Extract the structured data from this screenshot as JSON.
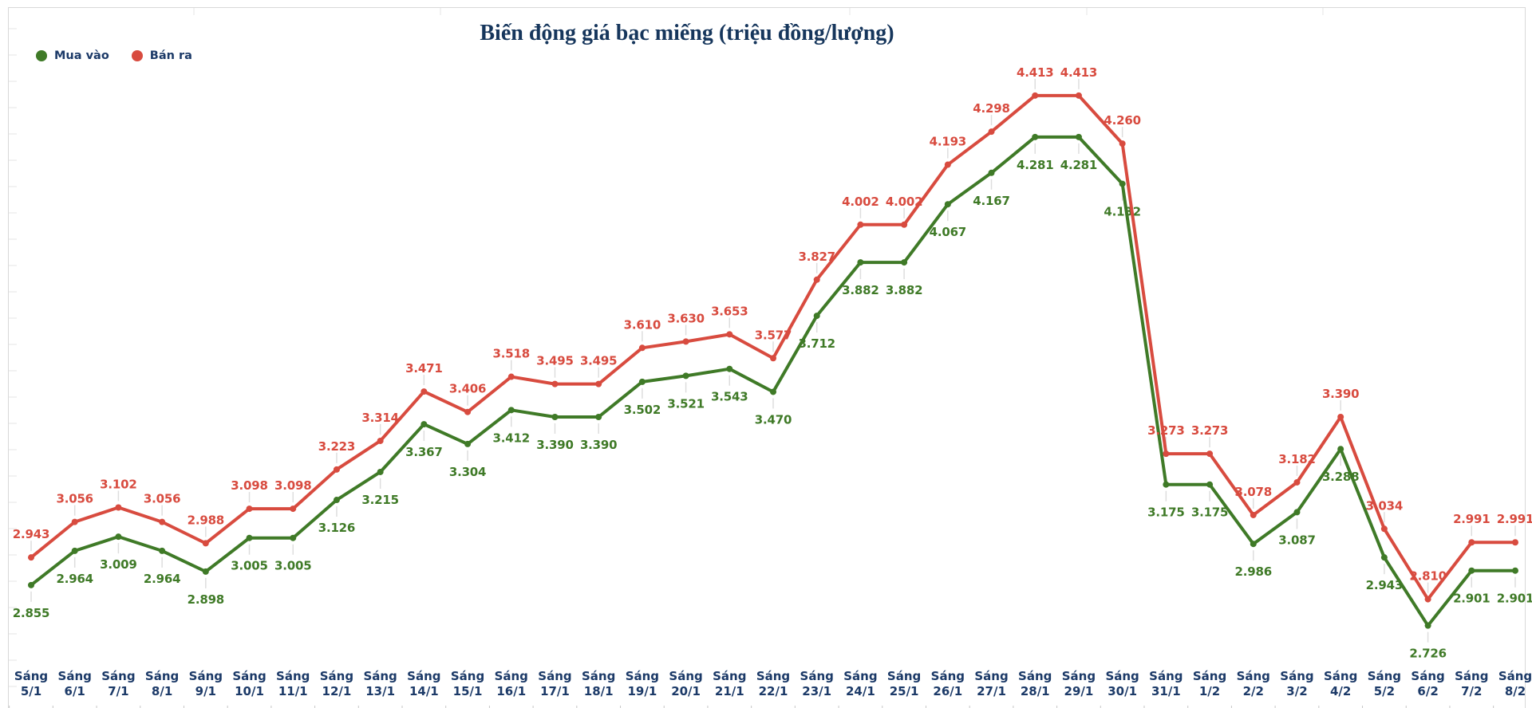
{
  "chart_data": {
    "type": "line",
    "title": "Biến động giá bạc miếng (triệu đồng/lượng)",
    "x_label_prefix": "Sáng",
    "categories": [
      "5/1",
      "6/1",
      "7/1",
      "8/1",
      "9/1",
      "10/1",
      "11/1",
      "12/1",
      "13/1",
      "14/1",
      "15/1",
      "16/1",
      "17/1",
      "18/1",
      "19/1",
      "20/1",
      "21/1",
      "22/1",
      "23/1",
      "24/1",
      "25/1",
      "26/1",
      "27/1",
      "28/1",
      "29/1",
      "30/1",
      "31/1",
      "1/2",
      "2/2",
      "3/2",
      "4/2",
      "5/2",
      "6/2",
      "7/2",
      "8/2"
    ],
    "series": [
      {
        "name": "Mua vào",
        "color": "#3f7a27",
        "label_side": "below",
        "values": [
          2.855,
          2.964,
          3.009,
          2.964,
          2.898,
          3.005,
          3.005,
          3.126,
          3.215,
          3.367,
          3.304,
          3.412,
          3.39,
          3.39,
          3.502,
          3.521,
          3.543,
          3.47,
          3.712,
          3.882,
          3.882,
          4.067,
          4.167,
          4.281,
          4.281,
          4.132,
          3.175,
          3.175,
          2.986,
          3.087,
          3.288,
          2.943,
          2.726,
          2.901,
          2.901
        ]
      },
      {
        "name": "Bán ra",
        "color": "#d84b3f",
        "label_side": "above",
        "values": [
          2.943,
          3.056,
          3.102,
          3.056,
          2.988,
          3.098,
          3.098,
          3.223,
          3.314,
          3.471,
          3.406,
          3.518,
          3.495,
          3.495,
          3.61,
          3.63,
          3.653,
          3.577,
          3.827,
          4.002,
          4.002,
          4.193,
          4.298,
          4.413,
          4.413,
          4.26,
          3.273,
          3.273,
          3.078,
          3.182,
          3.39,
          3.034,
          2.81,
          2.991,
          2.991
        ]
      }
    ],
    "value_decimals": 3,
    "ylim": [
      2.6,
      4.55
    ],
    "grid": false,
    "legend_position": "top-left",
    "data_labels": true,
    "title_color": "#16365c",
    "axis_text_color": "#1c3a68"
  }
}
